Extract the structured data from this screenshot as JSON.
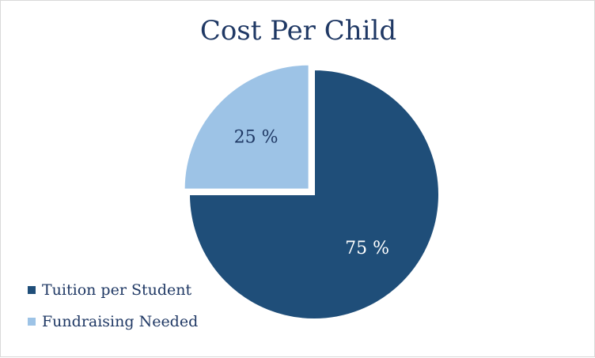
{
  "chart_data": {
    "type": "pie",
    "title": "Cost Per Child",
    "slices": [
      {
        "label": "Tuition per Student",
        "value": 75,
        "data_label": "75 %",
        "color": "#1f4e79",
        "label_color": "#ffffff",
        "exploded": false
      },
      {
        "label": "Fundraising Needed",
        "value": 25,
        "data_label": "25 %",
        "color": "#9dc3e6",
        "label_color": "#1f3864",
        "exploded": true
      }
    ],
    "start_angle_deg": 0,
    "direction": "clockwise",
    "legend_position": "bottom-left"
  }
}
